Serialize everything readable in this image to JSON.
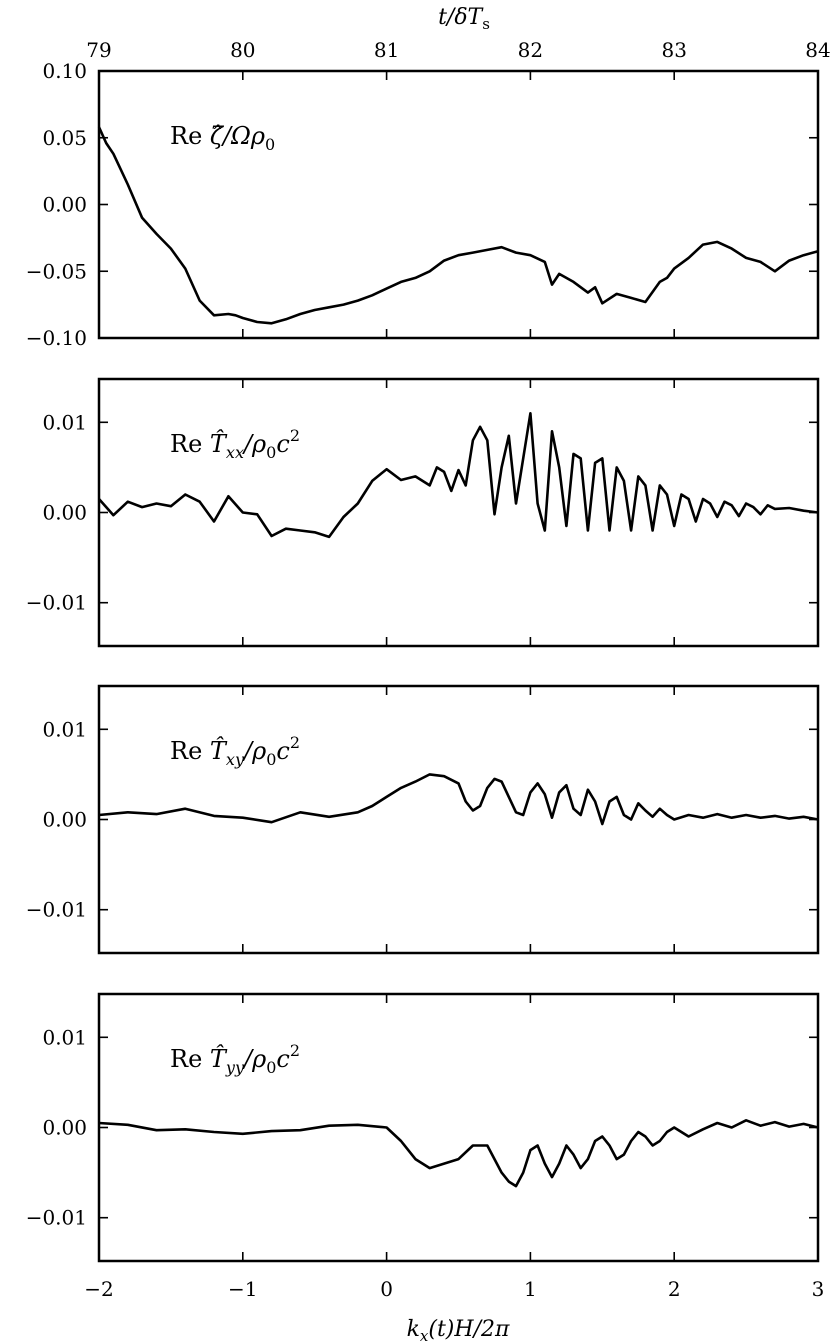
{
  "figure": {
    "top_axis_label": "t/δT",
    "top_axis_label_sub": "s",
    "bottom_axis_label": "k",
    "bottom_axis_label_sub": "x",
    "bottom_axis_label_rest": "(t)H/2π"
  },
  "chart_data": [
    {
      "type": "line",
      "label": {
        "prefix": "Re ",
        "symbol": "ζ̂",
        "rest": "/Ωρ",
        "rest_sub": "0"
      },
      "xlim": [
        -2,
        3
      ],
      "ylim": [
        -0.1,
        0.1
      ],
      "y_ticks": [
        0.1,
        0.05,
        0.0,
        -0.05,
        -0.1
      ],
      "y_tick_labels": [
        "0.10",
        "0.05",
        "0.00",
        "−0.05",
        "−0.10"
      ],
      "top_axis": {
        "lim": [
          79,
          84
        ],
        "ticks": [
          79,
          80,
          81,
          82,
          83,
          84
        ],
        "tick_labels": [
          "79",
          "80",
          "81",
          "82",
          "83",
          "84"
        ]
      },
      "series": [
        {
          "x": [
            -2.0,
            -1.95,
            -1.9,
            -1.8,
            -1.7,
            -1.6,
            -1.5,
            -1.4,
            -1.3,
            -1.2,
            -1.1,
            -1.05,
            -1.0,
            -0.9,
            -0.8,
            -0.7,
            -0.6,
            -0.5,
            -0.4,
            -0.3,
            -0.2,
            -0.1,
            0.0,
            0.1,
            0.2,
            0.3,
            0.4,
            0.5,
            0.6,
            0.7,
            0.8,
            0.9,
            1.0,
            1.1,
            1.15,
            1.2,
            1.3,
            1.4,
            1.45,
            1.5,
            1.6,
            1.7,
            1.8,
            1.9,
            1.95,
            2.0,
            2.1,
            2.2,
            2.3,
            2.4,
            2.5,
            2.6,
            2.7,
            2.8,
            2.9,
            3.0
          ],
          "y": [
            0.058,
            0.046,
            0.038,
            0.015,
            -0.01,
            -0.022,
            -0.033,
            -0.048,
            -0.072,
            -0.083,
            -0.082,
            -0.083,
            -0.085,
            -0.088,
            -0.089,
            -0.086,
            -0.082,
            -0.079,
            -0.077,
            -0.075,
            -0.072,
            -0.068,
            -0.063,
            -0.058,
            -0.055,
            -0.05,
            -0.042,
            -0.038,
            -0.036,
            -0.034,
            -0.032,
            -0.036,
            -0.038,
            -0.043,
            -0.06,
            -0.052,
            -0.058,
            -0.066,
            -0.062,
            -0.074,
            -0.067,
            -0.07,
            -0.073,
            -0.058,
            -0.055,
            -0.048,
            -0.04,
            -0.03,
            -0.028,
            -0.033,
            -0.04,
            -0.043,
            -0.05,
            -0.042,
            -0.038,
            -0.035
          ]
        }
      ]
    },
    {
      "type": "line",
      "label": {
        "prefix": "Re ",
        "symbol": "T̂",
        "sub": "xx",
        "rest": "/ρ",
        "rest_sub": "0",
        "rest2": "c",
        "sup": "2"
      },
      "xlim": [
        -2,
        3
      ],
      "ylim": [
        -0.0148,
        0.0148
      ],
      "y_ticks": [
        0.01,
        0.0,
        -0.01
      ],
      "y_tick_labels": [
        "0.01",
        "0.00",
        "−0.01"
      ],
      "series": [
        {
          "x": [
            -2.0,
            -1.9,
            -1.8,
            -1.7,
            -1.6,
            -1.5,
            -1.4,
            -1.3,
            -1.2,
            -1.1,
            -1.0,
            -0.9,
            -0.8,
            -0.7,
            -0.6,
            -0.5,
            -0.4,
            -0.3,
            -0.2,
            -0.1,
            0.0,
            0.1,
            0.2,
            0.3,
            0.35,
            0.4,
            0.45,
            0.5,
            0.55,
            0.6,
            0.65,
            0.7,
            0.75,
            0.8,
            0.85,
            0.9,
            0.95,
            1.0,
            1.05,
            1.1,
            1.15,
            1.2,
            1.25,
            1.3,
            1.35,
            1.4,
            1.45,
            1.5,
            1.55,
            1.6,
            1.65,
            1.7,
            1.75,
            1.8,
            1.85,
            1.9,
            1.95,
            2.0,
            2.05,
            2.1,
            2.15,
            2.2,
            2.25,
            2.3,
            2.35,
            2.4,
            2.45,
            2.5,
            2.55,
            2.6,
            2.65,
            2.7,
            2.8,
            2.9,
            3.0
          ],
          "y": [
            0.0015,
            -0.0003,
            0.0012,
            0.0006,
            0.001,
            0.0007,
            0.002,
            0.0012,
            -0.001,
            0.0018,
            0.0,
            -0.0002,
            -0.0026,
            -0.0018,
            -0.002,
            -0.0022,
            -0.0027,
            -0.0005,
            0.001,
            0.0035,
            0.0048,
            0.0036,
            0.004,
            0.003,
            0.005,
            0.0045,
            0.0024,
            0.0047,
            0.003,
            0.008,
            0.0095,
            0.008,
            -0.0002,
            0.005,
            0.0085,
            0.001,
            0.006,
            0.011,
            0.001,
            -0.002,
            0.009,
            0.005,
            -0.0015,
            0.0065,
            0.006,
            -0.002,
            0.0055,
            0.006,
            -0.002,
            0.005,
            0.0035,
            -0.002,
            0.004,
            0.003,
            -0.002,
            0.003,
            0.002,
            -0.0015,
            0.002,
            0.0015,
            -0.001,
            0.0015,
            0.001,
            -0.0005,
            0.0012,
            0.0008,
            -0.0004,
            0.001,
            0.0006,
            -0.0002,
            0.0008,
            0.0004,
            0.0005,
            0.0002,
            0.0
          ]
        }
      ]
    },
    {
      "type": "line",
      "label": {
        "prefix": "Re ",
        "symbol": "T̂",
        "sub": "xy",
        "rest": "/ρ",
        "rest_sub": "0",
        "rest2": "c",
        "sup": "2"
      },
      "xlim": [
        -2,
        3
      ],
      "ylim": [
        -0.0148,
        0.0148
      ],
      "y_ticks": [
        0.01,
        0.0,
        -0.01
      ],
      "y_tick_labels": [
        "0.01",
        "0.00",
        "−0.01"
      ],
      "series": [
        {
          "x": [
            -2.0,
            -1.8,
            -1.6,
            -1.4,
            -1.2,
            -1.0,
            -0.8,
            -0.6,
            -0.4,
            -0.2,
            -0.1,
            0.0,
            0.1,
            0.2,
            0.3,
            0.4,
            0.5,
            0.55,
            0.6,
            0.65,
            0.7,
            0.75,
            0.8,
            0.85,
            0.9,
            0.95,
            1.0,
            1.05,
            1.1,
            1.15,
            1.2,
            1.25,
            1.3,
            1.35,
            1.4,
            1.45,
            1.5,
            1.55,
            1.6,
            1.65,
            1.7,
            1.75,
            1.8,
            1.85,
            1.9,
            1.95,
            2.0,
            2.1,
            2.2,
            2.3,
            2.4,
            2.5,
            2.6,
            2.7,
            2.8,
            2.9,
            3.0
          ],
          "y": [
            0.0005,
            0.0008,
            0.0006,
            0.0012,
            0.0004,
            0.0002,
            -0.0003,
            0.0008,
            0.0003,
            0.0008,
            0.0015,
            0.0025,
            0.0035,
            0.0042,
            0.005,
            0.0048,
            0.004,
            0.002,
            0.001,
            0.0015,
            0.0035,
            0.0045,
            0.0042,
            0.0025,
            0.0008,
            0.0005,
            0.003,
            0.004,
            0.0028,
            0.0002,
            0.003,
            0.0038,
            0.0012,
            0.0005,
            0.0033,
            0.002,
            -0.0005,
            0.002,
            0.0025,
            0.0005,
            0.0,
            0.0018,
            0.001,
            0.0003,
            0.0012,
            0.0005,
            0.0,
            0.0005,
            0.0002,
            0.0006,
            0.0002,
            0.0005,
            0.0002,
            0.0004,
            0.0001,
            0.0003,
            0.0
          ]
        }
      ]
    },
    {
      "type": "line",
      "label": {
        "prefix": "Re ",
        "symbol": "T̂",
        "sub": "yy",
        "rest": "/ρ",
        "rest_sub": "0",
        "rest2": "c",
        "sup": "2"
      },
      "xlim": [
        -2,
        3
      ],
      "ylim": [
        -0.0148,
        0.0148
      ],
      "y_ticks": [
        0.01,
        0.0,
        -0.01
      ],
      "y_tick_labels": [
        "0.01",
        "0.00",
        "−0.01"
      ],
      "series": [
        {
          "x": [
            -2.0,
            -1.8,
            -1.6,
            -1.4,
            -1.2,
            -1.0,
            -0.8,
            -0.6,
            -0.4,
            -0.2,
            0.0,
            0.1,
            0.2,
            0.3,
            0.4,
            0.5,
            0.6,
            0.7,
            0.8,
            0.85,
            0.9,
            0.95,
            1.0,
            1.05,
            1.1,
            1.15,
            1.2,
            1.25,
            1.3,
            1.35,
            1.4,
            1.45,
            1.5,
            1.55,
            1.6,
            1.65,
            1.7,
            1.75,
            1.8,
            1.85,
            1.9,
            1.95,
            2.0,
            2.1,
            2.2,
            2.3,
            2.4,
            2.5,
            2.6,
            2.7,
            2.8,
            2.9,
            3.0
          ],
          "y": [
            0.0005,
            0.0003,
            -0.0003,
            -0.0002,
            -0.0005,
            -0.0007,
            -0.0004,
            -0.0003,
            0.0002,
            0.0003,
            0.0,
            -0.0015,
            -0.0035,
            -0.0045,
            -0.004,
            -0.0035,
            -0.002,
            -0.002,
            -0.005,
            -0.006,
            -0.0065,
            -0.005,
            -0.0025,
            -0.002,
            -0.004,
            -0.0055,
            -0.004,
            -0.002,
            -0.003,
            -0.0045,
            -0.0035,
            -0.0015,
            -0.001,
            -0.002,
            -0.0035,
            -0.003,
            -0.0015,
            -0.0005,
            -0.001,
            -0.002,
            -0.0015,
            -0.0005,
            0.0,
            -0.001,
            -0.0002,
            0.0005,
            0.0,
            0.0008,
            0.0002,
            0.0006,
            0.0001,
            0.0004,
            0.0
          ]
        }
      ]
    }
  ],
  "bottom_axis": {
    "ticks": [
      -2,
      -1,
      0,
      1,
      2,
      3
    ],
    "tick_labels": [
      "−2",
      "−1",
      "0",
      "1",
      "2",
      "3"
    ]
  }
}
